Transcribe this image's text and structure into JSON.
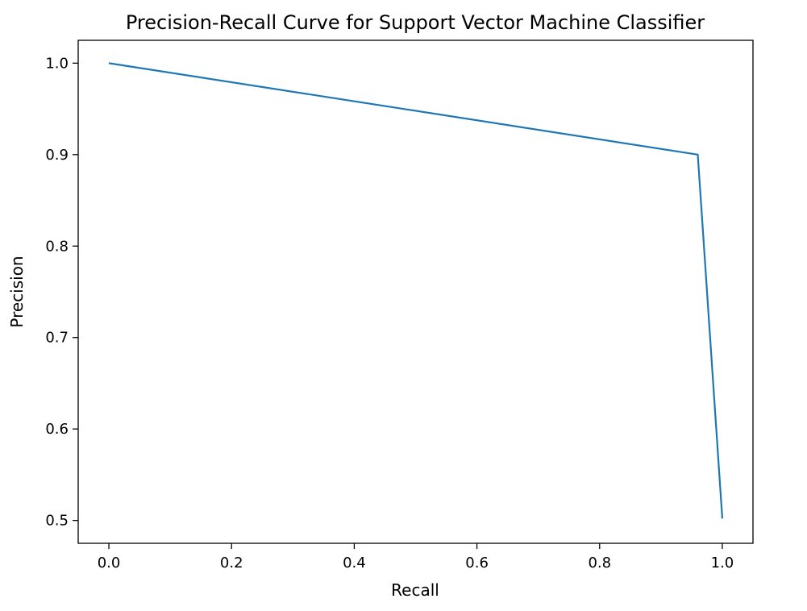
{
  "chart_data": {
    "type": "line",
    "title": "Precision-Recall Curve for Support Vector Machine Classifier",
    "xlabel": "Recall",
    "ylabel": "Precision",
    "xlim": [
      -0.05,
      1.05
    ],
    "ylim": [
      0.475,
      1.025
    ],
    "xticks": [
      0.0,
      0.2,
      0.4,
      0.6,
      0.8,
      1.0
    ],
    "xtick_labels": [
      "0.0",
      "0.2",
      "0.4",
      "0.6",
      "0.8",
      "1.0"
    ],
    "yticks": [
      0.5,
      0.6,
      0.7,
      0.8,
      0.9,
      1.0
    ],
    "ytick_labels": [
      "0.5",
      "0.6",
      "0.7",
      "0.8",
      "0.9",
      "1.0"
    ],
    "grid": false,
    "series": [
      {
        "color": "#1f77b4",
        "x": [
          0.0,
          0.96,
          1.0
        ],
        "y": [
          1.0,
          0.9,
          0.502
        ]
      }
    ]
  }
}
